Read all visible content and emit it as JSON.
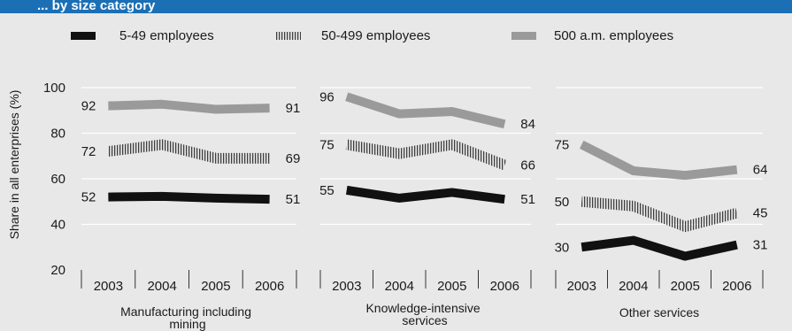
{
  "header": {
    "title_fragment": "... by size category"
  },
  "colors": {
    "background": "#e8e8e8",
    "header": "#1b6fb5",
    "series_small": "#111111",
    "series_medium": "#4a4a4a",
    "series_large": "#9a9a9a",
    "gridline": "#ffffff",
    "text": "#1a1a1a"
  },
  "chart_data": {
    "type": "line",
    "ylabel": "Share in all enterprises (%)",
    "ylim": [
      20,
      100
    ],
    "yticks": [
      20,
      40,
      60,
      80,
      100
    ],
    "grid": true,
    "legend_placement": "top",
    "legend": [
      {
        "label": "5-49 employees",
        "style": "solid-black"
      },
      {
        "label": "50-499 employees",
        "style": "hatched"
      },
      {
        "label": "500 a.m. employees",
        "style": "solid-grey"
      }
    ],
    "panels": [
      {
        "title": "Manufacturing including mining",
        "categories": [
          "2003",
          "2004",
          "2005",
          "2006"
        ],
        "series": [
          {
            "values": [
              52,
              52.3,
              51.5,
              51
            ],
            "start_label": "52",
            "end_label": "51"
          },
          {
            "values": [
              72,
              75,
              69,
              69
            ],
            "start_label": "72",
            "end_label": "69"
          },
          {
            "values": [
              92,
              92.7,
              90.5,
              91
            ],
            "start_label": "92",
            "end_label": "91"
          }
        ]
      },
      {
        "title": "Knowledge-intensive services",
        "categories": [
          "2003",
          "2004",
          "2005",
          "2006"
        ],
        "series": [
          {
            "values": [
              55,
              51.5,
              54,
              51
            ],
            "start_label": "55",
            "end_label": "51"
          },
          {
            "values": [
              75,
              71,
              75,
              66
            ],
            "start_label": "75",
            "end_label": "66"
          },
          {
            "values": [
              96,
              88.5,
              89.5,
              84
            ],
            "start_label": "96",
            "end_label": "84"
          }
        ]
      },
      {
        "title": "Other services",
        "categories": [
          "2003",
          "2004",
          "2005",
          "2006"
        ],
        "series": [
          {
            "values": [
              30,
              33,
              26,
              31
            ],
            "start_label": "30",
            "end_label": "31"
          },
          {
            "values": [
              50,
              48,
              39,
              45
            ],
            "start_label": "50",
            "end_label": "45"
          },
          {
            "values": [
              75,
              63.5,
              61.5,
              64
            ],
            "start_label": "75",
            "end_label": "64"
          }
        ]
      }
    ]
  }
}
